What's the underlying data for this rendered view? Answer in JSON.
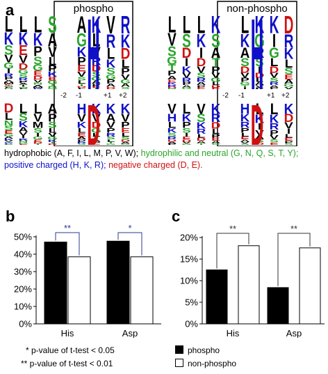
{
  "panels": {
    "a": "a",
    "b": "b",
    "c": "c"
  },
  "logos": {
    "left_title": "phospho",
    "right_title": "non-phospho",
    "positions": [
      "-2",
      "-1",
      "+1",
      "+2"
    ],
    "center_residue_top": "H",
    "center_residue_bottom": "D",
    "top_left_columns": [
      "LKSVGIRPAMETQFDYNH",
      "LKEVDGSRPAITQFN",
      "LKPSGEDVNAMR",
      "SAVLPKEGTNQ",
      "LQSAPVDKETG",
      "AGKPEVSLTDF",
      "KLVRDSGAPET",
      "VRLKSGPAD",
      "RKDLPVGAS"
    ],
    "top_right_columns": [
      "LVSGTPAEKRDN",
      "LSDIKVRPAG",
      "LKIDVSRAPE",
      "KSATPVGLDE",
      "KLPIVADSTE",
      "LKASDVPGTI",
      "KGRSIDLAVP",
      "KIGLDVSRAP",
      "DRKLSEAGV"
    ],
    "bottom_left_columns": [
      "DLNSEGAKVTRFPQ",
      "LSKAVIRNGE",
      "LVMSIGEDT",
      "APSLVGKTD",
      "HIEVKLPSTQ",
      "HVKLEAPRS",
      "KVDGLTAPE",
      "KAVPRSLTG",
      "KVPELSDAG"
    ],
    "bottom_right_columns": [
      "VHLKSRDAP",
      "LKPSIEDVG",
      "VSKRLDAT",
      "KRDLPEAS",
      "KEGIPVSTD",
      "HKRPLEAVS",
      "LKIVASD",
      "LKRPVSE",
      "KDVILEPS"
    ]
  },
  "legend": {
    "hydrophobic": "hydrophobic (A, F, I, L, M, P, V, W);",
    "hydrophilic": "hydrophilic and neutral (G, N, Q, S, T, Y);",
    "positive": "positive charged (H, K, R);",
    "negative": "negative charged (D, E)."
  },
  "colors": {
    "hydrophobic": "#000000",
    "hydrophilic": "#2aa52a",
    "positive": "#1010c8",
    "negative": "#d01010",
    "phospho_bar": "#000000",
    "nonphospho_bar": "#ffffff",
    "bracket_b": "#2b3a8f",
    "bracket_c": "#333333"
  },
  "notes": {
    "single_star": "* p-value of t-test < 0.05",
    "double_star": "** p-value of t-test < 0.01"
  },
  "key": {
    "phospho": "phospho",
    "nonphospho": "non-phospho"
  },
  "chart_data": [
    {
      "type": "bar",
      "panel": "b",
      "categories": [
        "His",
        "Asp"
      ],
      "series": [
        {
          "name": "phospho",
          "values": [
            47,
            47.5
          ]
        },
        {
          "name": "non-phospho",
          "values": [
            38.5,
            38.5
          ]
        }
      ],
      "yticks": [
        "0%",
        "10%",
        "20%",
        "30%",
        "40%",
        "50%"
      ],
      "ylim": [
        0,
        50
      ],
      "significance": [
        "**",
        "*"
      ]
    },
    {
      "type": "bar",
      "panel": "c",
      "categories": [
        "His",
        "Asp"
      ],
      "series": [
        {
          "name": "phospho",
          "values": [
            12.5,
            8.4
          ]
        },
        {
          "name": "non-phospho",
          "values": [
            18.1,
            17.6
          ]
        }
      ],
      "yticks": [
        "0%",
        "5%",
        "10%",
        "15%",
        "20%"
      ],
      "ylim": [
        0,
        20
      ],
      "significance": [
        "**",
        "**"
      ]
    }
  ]
}
